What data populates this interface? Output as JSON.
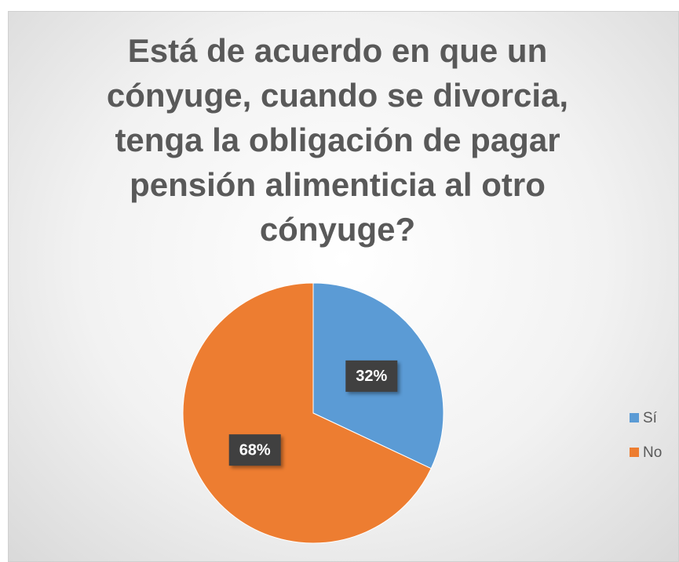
{
  "chart_data": {
    "type": "pie",
    "title": "Está de acuerdo en que un cónyuge, cuando se divorcia, tenga la obligación de pagar pensión alimenticia al otro cónyuge?",
    "categories": [
      "Sí",
      "No"
    ],
    "values": [
      32,
      68
    ],
    "value_labels": [
      "32%",
      "68%"
    ],
    "colors": [
      "#5b9bd5",
      "#ed7d31"
    ],
    "legend": "right"
  }
}
